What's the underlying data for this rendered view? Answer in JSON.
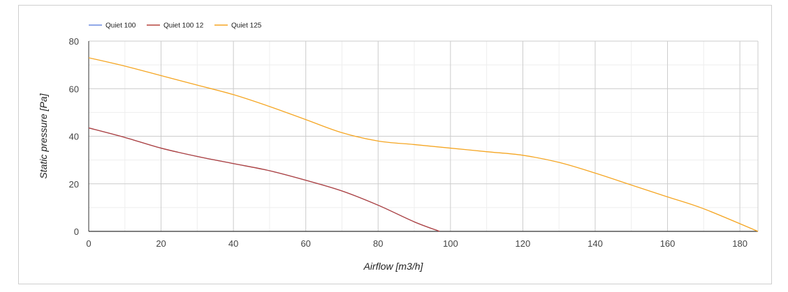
{
  "chart_data": {
    "type": "line",
    "title": "",
    "xlabel": "Airflow [m3/h]",
    "ylabel": "Static pressure [Pa]",
    "xlim": [
      0,
      185
    ],
    "ylim": [
      0,
      80
    ],
    "xticks": [
      0,
      20,
      40,
      60,
      80,
      100,
      120,
      140,
      160,
      180
    ],
    "yticks": [
      0,
      20,
      40,
      60,
      80
    ],
    "grid": true,
    "legend_position": "top-left",
    "series": [
      {
        "name": "Quiet 100",
        "color": "#6b8ce0",
        "x": [
          0,
          10,
          20,
          30,
          40,
          50,
          60,
          70,
          80,
          90,
          97
        ],
        "y": [
          43.5,
          39.5,
          35,
          31.5,
          28.5,
          25.5,
          21.5,
          17,
          11,
          4,
          0
        ]
      },
      {
        "name": "Quiet 100 12",
        "color": "#b5433d",
        "x": [
          0,
          10,
          20,
          30,
          40,
          50,
          60,
          70,
          80,
          90,
          97
        ],
        "y": [
          43.5,
          39.5,
          35,
          31.5,
          28.5,
          25.5,
          21.5,
          17,
          11,
          4,
          0
        ]
      },
      {
        "name": "Quiet 125",
        "color": "#f5a623",
        "x": [
          0,
          10,
          20,
          30,
          40,
          50,
          60,
          70,
          80,
          90,
          100,
          110,
          120,
          130,
          140,
          150,
          160,
          170,
          185
        ],
        "y": [
          73,
          69.5,
          65.5,
          61.5,
          57.5,
          52.5,
          47,
          41.5,
          38,
          36.5,
          35,
          33.5,
          32,
          29,
          24.5,
          19.5,
          14.5,
          9.5,
          0
        ]
      }
    ]
  }
}
